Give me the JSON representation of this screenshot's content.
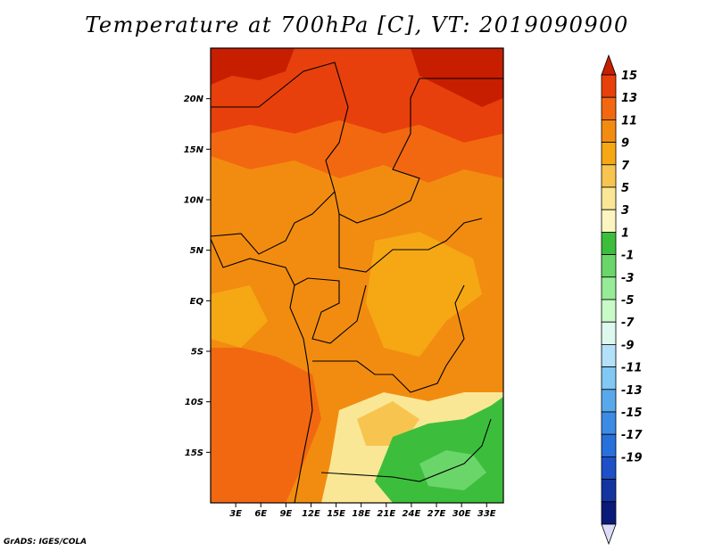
{
  "title": "Temperature at 700hPa [C], VT: 2019090900",
  "credit": "GrADS: IGES/COLA",
  "map": {
    "region": "Central Africa",
    "lon_range": [
      0,
      35
    ],
    "lat_range": [
      -20,
      25
    ],
    "lat_ticks": [
      {
        "value": 20,
        "label": "20N"
      },
      {
        "value": 15,
        "label": "15N"
      },
      {
        "value": 10,
        "label": "10N"
      },
      {
        "value": 5,
        "label": "5N"
      },
      {
        "value": 0,
        "label": "EQ"
      },
      {
        "value": -5,
        "label": "5S"
      },
      {
        "value": -10,
        "label": "10S"
      },
      {
        "value": -15,
        "label": "15S"
      }
    ],
    "lon_ticks": [
      {
        "value": 3,
        "label": "3E"
      },
      {
        "value": 6,
        "label": "6E"
      },
      {
        "value": 9,
        "label": "9E"
      },
      {
        "value": 12,
        "label": "12E"
      },
      {
        "value": 15,
        "label": "15E"
      },
      {
        "value": 18,
        "label": "18E"
      },
      {
        "value": 21,
        "label": "21E"
      },
      {
        "value": 24,
        "label": "24E"
      },
      {
        "value": 27,
        "label": "27E"
      },
      {
        "value": 30,
        "label": "30E"
      },
      {
        "value": 33,
        "label": "33E"
      }
    ]
  },
  "colorbar": {
    "levels": [
      "15",
      "13",
      "11",
      "9",
      "7",
      "5",
      "3",
      "1",
      "-1",
      "-3",
      "-5",
      "-7",
      "-9",
      "-11",
      "-13",
      "-15",
      "-17",
      "-19"
    ],
    "colors": [
      "#c81e00",
      "#e8400c",
      "#f26810",
      "#f28c10",
      "#f5a814",
      "#f8c450",
      "#fae796",
      "#fcf5c0",
      "#3cbe3c",
      "#6ad66a",
      "#96ec96",
      "#c8fac8",
      "#dff8ee",
      "#b4e0fa",
      "#82c8f4",
      "#5aa8ec",
      "#3c8ce6",
      "#2870dc",
      "#1e50c8",
      "#1434a0",
      "#0a1a78",
      "#dcdcf8"
    ]
  }
}
